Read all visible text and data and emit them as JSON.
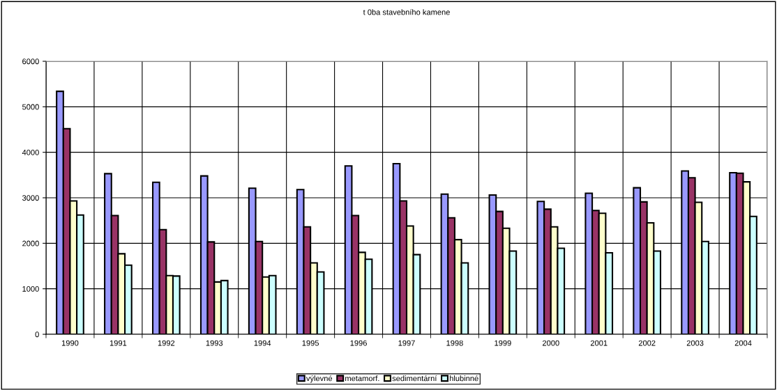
{
  "chart_data": {
    "type": "bar",
    "title": "t 0ba stavebního kamene",
    "categories": [
      "1990",
      "1991",
      "1992",
      "1993",
      "1994",
      "1995",
      "1996",
      "1997",
      "1998",
      "1999",
      "2000",
      "2001",
      "2002",
      "2003",
      "2004"
    ],
    "series": [
      {
        "name": "výlevné",
        "color": "#9999ff",
        "values": [
          5340,
          3530,
          3340,
          3480,
          3210,
          3180,
          3700,
          3750,
          3080,
          3060,
          2920,
          3100,
          3220,
          3590,
          3550
        ]
      },
      {
        "name": "metamorf.",
        "color": "#993366",
        "values": [
          4520,
          2610,
          2300,
          2030,
          2040,
          2360,
          2610,
          2930,
          2560,
          2700,
          2750,
          2720,
          2910,
          3440,
          3540
        ]
      },
      {
        "name": "sedimentární",
        "color": "#ffffcc",
        "values": [
          2930,
          1770,
          1290,
          1150,
          1260,
          1570,
          1800,
          2380,
          2080,
          2330,
          2360,
          2660,
          2450,
          2900,
          3350
        ]
      },
      {
        "name": "hlubinné",
        "color": "#ccffff",
        "values": [
          2620,
          1520,
          1280,
          1180,
          1290,
          1370,
          1650,
          1750,
          1570,
          1830,
          1890,
          1790,
          1830,
          2040,
          2590
        ]
      }
    ],
    "ylim": [
      0,
      6000
    ],
    "yticks": [
      0,
      1000,
      2000,
      3000,
      4000,
      5000,
      6000
    ],
    "grid": true,
    "legend": "bottom"
  }
}
